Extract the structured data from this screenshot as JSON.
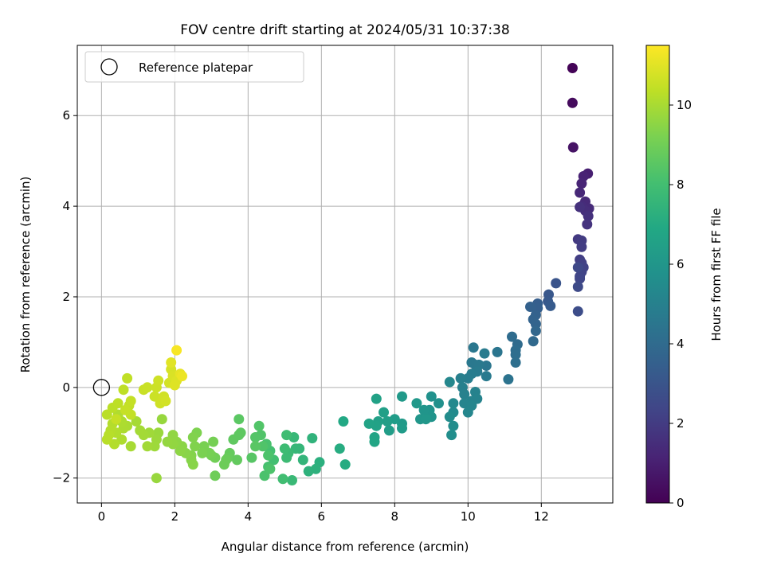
{
  "chart_data": {
    "type": "scatter",
    "title": "FOV centre drift starting at 2024/05/31 10:37:38",
    "xlabel": "Angular distance from reference (arcmin)",
    "ylabel": "Rotation from reference (arcmin)",
    "xlim": [
      -0.66,
      13.95
    ],
    "ylim": [
      -2.55,
      7.55
    ],
    "x_ticks": [
      0,
      2,
      4,
      6,
      8,
      10,
      12
    ],
    "y_ticks": [
      -2,
      0,
      2,
      4,
      6
    ],
    "x_tick_labels": [
      "0",
      "2",
      "4",
      "6",
      "8",
      "10",
      "12"
    ],
    "y_tick_labels": [
      "−2",
      "0",
      "2",
      "4",
      "6"
    ],
    "grid": true,
    "legend": {
      "placement": "top-left",
      "entries": [
        "Reference platepar"
      ]
    },
    "reference_point": {
      "x": 0,
      "y": 0,
      "label": "Reference platepar"
    },
    "colorbar": {
      "label": "Hours from first FF file",
      "colormap": "viridis",
      "range": [
        0,
        11.5
      ],
      "ticks": [
        0,
        2,
        4,
        6,
        8,
        10
      ],
      "tick_labels": [
        "0",
        "2",
        "4",
        "6",
        "8",
        "10"
      ]
    },
    "series": [
      {
        "points": [
          [
            12.85,
            7.05,
            0.1
          ],
          [
            12.85,
            6.28,
            0.3
          ],
          [
            12.87,
            5.3,
            0.6
          ],
          [
            13.27,
            4.72,
            1.0
          ],
          [
            13.15,
            4.66,
            1.1
          ],
          [
            13.1,
            4.5,
            1.2
          ],
          [
            13.05,
            4.3,
            1.3
          ],
          [
            13.2,
            4.1,
            1.35
          ],
          [
            13.3,
            3.95,
            1.4
          ],
          [
            13.1,
            4.0,
            1.45
          ],
          [
            13.2,
            3.9,
            1.5
          ],
          [
            13.28,
            3.78,
            1.6
          ],
          [
            13.05,
            3.98,
            1.62
          ],
          [
            13.25,
            3.6,
            1.7
          ],
          [
            13.0,
            3.27,
            1.9
          ],
          [
            13.1,
            3.24,
            2.0
          ],
          [
            13.1,
            3.1,
            2.05
          ],
          [
            13.05,
            2.82,
            2.1
          ],
          [
            13.1,
            2.75,
            2.2
          ],
          [
            13.15,
            2.65,
            2.25
          ],
          [
            13.1,
            2.55,
            2.3
          ],
          [
            13.05,
            2.45,
            2.35
          ],
          [
            13.05,
            2.4,
            2.4
          ],
          [
            13.0,
            2.65,
            2.5
          ],
          [
            13.0,
            2.22,
            2.55
          ],
          [
            13.0,
            1.68,
            2.7
          ],
          [
            12.4,
            2.3,
            3.0
          ],
          [
            12.2,
            2.05,
            3.1
          ],
          [
            12.18,
            1.9,
            3.2
          ],
          [
            12.25,
            1.8,
            3.3
          ],
          [
            11.9,
            1.85,
            3.4
          ],
          [
            11.9,
            1.75,
            3.45
          ],
          [
            11.7,
            1.78,
            3.55
          ],
          [
            11.85,
            1.6,
            3.6
          ],
          [
            11.78,
            1.5,
            3.65
          ],
          [
            11.85,
            1.4,
            3.7
          ],
          [
            11.85,
            1.25,
            3.8
          ],
          [
            11.78,
            1.02,
            3.9
          ],
          [
            11.35,
            0.95,
            4.0
          ],
          [
            11.2,
            1.12,
            4.05
          ],
          [
            11.3,
            0.82,
            4.1
          ],
          [
            11.3,
            0.72,
            4.15
          ],
          [
            11.3,
            0.55,
            4.2
          ],
          [
            11.1,
            0.18,
            4.35
          ],
          [
            10.8,
            0.78,
            4.45
          ],
          [
            10.5,
            0.48,
            4.5
          ],
          [
            10.15,
            0.88,
            4.55
          ],
          [
            10.1,
            0.55,
            4.6
          ],
          [
            10.2,
            0.5,
            4.62
          ],
          [
            10.3,
            0.5,
            4.65
          ],
          [
            10.5,
            0.25,
            4.7
          ],
          [
            10.25,
            0.35,
            4.72
          ],
          [
            10.45,
            0.75,
            4.75
          ],
          [
            10.1,
            0.3,
            4.8
          ],
          [
            10.0,
            0.2,
            4.85
          ],
          [
            9.8,
            0.2,
            4.9
          ],
          [
            9.85,
            0.0,
            4.95
          ],
          [
            9.9,
            -0.15,
            5.0
          ],
          [
            10.2,
            -0.1,
            5.05
          ],
          [
            10.1,
            -0.3,
            5.1
          ],
          [
            10.25,
            -0.25,
            5.12
          ],
          [
            9.9,
            -0.35,
            5.15
          ],
          [
            10.1,
            -0.4,
            5.2
          ],
          [
            10.0,
            -0.55,
            5.25
          ],
          [
            9.5,
            0.12,
            5.3
          ],
          [
            9.6,
            -0.35,
            5.4
          ],
          [
            9.6,
            -0.55,
            5.45
          ],
          [
            9.5,
            -0.65,
            5.5
          ],
          [
            9.6,
            -0.85,
            5.55
          ],
          [
            9.55,
            -1.05,
            5.6
          ],
          [
            9.2,
            -0.35,
            5.7
          ],
          [
            9.0,
            -0.2,
            5.75
          ],
          [
            8.95,
            -0.5,
            5.8
          ],
          [
            9.0,
            -0.65,
            5.85
          ],
          [
            8.9,
            -0.55,
            5.9
          ],
          [
            8.8,
            -0.5,
            5.95
          ],
          [
            8.7,
            -0.7,
            6.0
          ],
          [
            8.85,
            -0.7,
            6.05
          ],
          [
            8.6,
            -0.35,
            6.1
          ],
          [
            8.2,
            -0.2,
            6.15
          ],
          [
            8.2,
            -0.8,
            6.2
          ],
          [
            8.2,
            -0.9,
            6.25
          ],
          [
            8.0,
            -0.7,
            6.3
          ],
          [
            7.85,
            -0.95,
            6.35
          ],
          [
            7.8,
            -0.75,
            6.4
          ],
          [
            7.7,
            -0.55,
            6.45
          ],
          [
            7.55,
            -0.75,
            6.5
          ],
          [
            7.5,
            -0.25,
            6.55
          ],
          [
            7.5,
            -0.85,
            6.6
          ],
          [
            7.3,
            -0.8,
            6.65
          ],
          [
            7.45,
            -1.1,
            6.7
          ],
          [
            7.45,
            -1.2,
            6.75
          ],
          [
            6.6,
            -0.75,
            6.9
          ],
          [
            6.65,
            -1.7,
            7.05
          ],
          [
            6.5,
            -1.35,
            7.1
          ],
          [
            5.95,
            -1.65,
            7.25
          ],
          [
            5.85,
            -1.8,
            7.3
          ],
          [
            5.65,
            -1.85,
            7.35
          ],
          [
            5.75,
            -1.12,
            7.4
          ],
          [
            5.5,
            -1.6,
            7.5
          ],
          [
            5.4,
            -1.35,
            7.55
          ],
          [
            5.3,
            -1.35,
            7.6
          ],
          [
            5.25,
            -1.1,
            7.65
          ],
          [
            5.2,
            -2.05,
            7.7
          ],
          [
            5.1,
            -1.45,
            7.75
          ],
          [
            5.05,
            -1.55,
            7.8
          ],
          [
            5.0,
            -1.35,
            7.85
          ],
          [
            5.05,
            -1.05,
            7.9
          ],
          [
            4.95,
            -2.02,
            7.95
          ],
          [
            4.7,
            -1.6,
            8.0
          ],
          [
            4.6,
            -1.4,
            8.05
          ],
          [
            4.55,
            -1.75,
            8.1
          ],
          [
            4.5,
            -1.25,
            8.15
          ],
          [
            4.45,
            -1.95,
            8.2
          ],
          [
            4.55,
            -1.5,
            8.22
          ],
          [
            4.6,
            -1.8,
            8.25
          ],
          [
            4.4,
            -1.3,
            8.3
          ],
          [
            4.35,
            -1.05,
            8.32
          ],
          [
            4.3,
            -0.85,
            8.35
          ],
          [
            4.2,
            -1.1,
            8.4
          ],
          [
            4.1,
            -1.55,
            8.45
          ],
          [
            4.2,
            -1.3,
            8.5
          ],
          [
            3.75,
            -0.7,
            8.55
          ],
          [
            3.8,
            -1.0,
            8.6
          ],
          [
            3.75,
            -1.05,
            8.62
          ],
          [
            3.6,
            -1.15,
            8.65
          ],
          [
            3.7,
            -1.6,
            8.7
          ],
          [
            3.5,
            -1.45,
            8.75
          ],
          [
            3.45,
            -1.55,
            8.8
          ],
          [
            3.4,
            -1.6,
            8.85
          ],
          [
            3.35,
            -1.7,
            8.9
          ],
          [
            3.1,
            -1.95,
            8.95
          ],
          [
            3.1,
            -1.55,
            9.0
          ],
          [
            3.0,
            -1.5,
            9.05
          ],
          [
            3.05,
            -1.2,
            9.1
          ],
          [
            2.95,
            -1.45,
            9.12
          ],
          [
            2.8,
            -1.3,
            9.15
          ],
          [
            2.75,
            -1.45,
            9.2
          ],
          [
            2.6,
            -1.0,
            9.25
          ],
          [
            2.55,
            -1.3,
            9.3
          ],
          [
            2.5,
            -1.1,
            9.32
          ],
          [
            2.45,
            -1.5,
            9.35
          ],
          [
            2.45,
            -1.6,
            9.4
          ],
          [
            2.5,
            -1.7,
            9.42
          ],
          [
            2.3,
            -1.45,
            9.45
          ],
          [
            2.2,
            -1.3,
            9.5
          ],
          [
            2.15,
            -1.4,
            9.52
          ],
          [
            2.05,
            -1.2,
            9.55
          ],
          [
            1.95,
            -1.05,
            9.6
          ],
          [
            1.95,
            -1.25,
            9.62
          ],
          [
            1.8,
            -1.2,
            9.65
          ],
          [
            1.65,
            -0.7,
            9.7
          ],
          [
            1.5,
            -2.0,
            9.72
          ],
          [
            1.55,
            -1.0,
            9.75
          ],
          [
            1.5,
            -1.15,
            9.8
          ],
          [
            1.45,
            -1.3,
            9.82
          ],
          [
            1.3,
            -1.0,
            9.85
          ],
          [
            1.25,
            -1.3,
            9.88
          ],
          [
            1.15,
            -1.05,
            9.9
          ],
          [
            1.05,
            -0.95,
            9.92
          ],
          [
            0.95,
            -0.75,
            9.95
          ],
          [
            0.8,
            -1.3,
            9.97
          ],
          [
            0.7,
            -0.5,
            10.0
          ],
          [
            0.7,
            -0.85,
            10.02
          ],
          [
            0.6,
            -0.9,
            10.05
          ],
          [
            0.55,
            -0.75,
            10.07
          ],
          [
            0.55,
            -1.15,
            10.1
          ],
          [
            0.45,
            -0.6,
            10.12
          ],
          [
            0.4,
            -1.0,
            10.15
          ],
          [
            0.35,
            -1.25,
            10.17
          ],
          [
            0.3,
            -0.8,
            10.2
          ],
          [
            0.25,
            -0.95,
            10.22
          ],
          [
            0.2,
            -1.05,
            10.25
          ],
          [
            0.15,
            -1.15,
            10.27
          ],
          [
            0.15,
            -0.6,
            10.3
          ],
          [
            0.3,
            -0.45,
            10.32
          ],
          [
            0.45,
            -0.35,
            10.35
          ],
          [
            0.6,
            -0.05,
            10.37
          ],
          [
            0.7,
            0.2,
            10.4
          ],
          [
            0.75,
            -0.4,
            10.42
          ],
          [
            0.8,
            -0.6,
            10.45
          ],
          [
            0.8,
            -0.3,
            10.47
          ],
          [
            0.65,
            -0.5,
            10.5
          ],
          [
            0.4,
            -0.7,
            10.52
          ],
          [
            1.15,
            -0.05,
            10.55
          ],
          [
            1.25,
            0.0,
            10.57
          ],
          [
            1.45,
            -0.2,
            10.6
          ],
          [
            1.5,
            0.0,
            10.62
          ],
          [
            1.55,
            0.15,
            10.65
          ],
          [
            1.6,
            -0.35,
            10.67
          ],
          [
            1.7,
            -0.2,
            10.7
          ],
          [
            1.75,
            -0.3,
            10.72
          ],
          [
            1.85,
            0.1,
            10.75
          ],
          [
            1.9,
            0.4,
            10.8
          ],
          [
            1.95,
            0.25,
            10.85
          ],
          [
            2.05,
            0.15,
            10.9
          ],
          [
            2.0,
            0.05,
            10.95
          ],
          [
            1.9,
            0.55,
            11.0
          ],
          [
            2.15,
            0.3,
            11.1
          ],
          [
            2.2,
            0.25,
            11.2
          ],
          [
            2.05,
            0.82,
            11.4
          ]
        ]
      }
    ]
  }
}
